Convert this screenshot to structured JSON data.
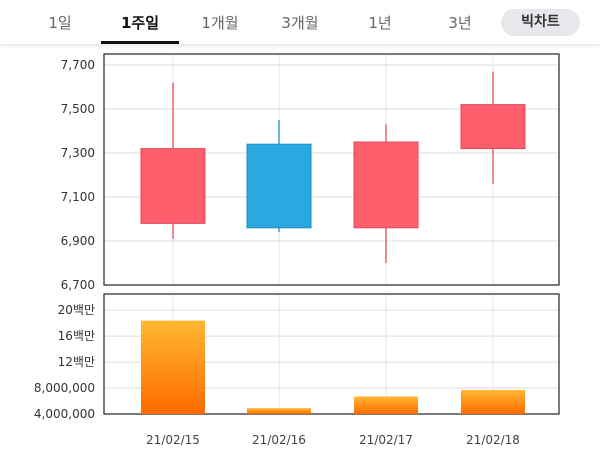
{
  "tabs": [
    {
      "label": "1일",
      "active": false
    },
    {
      "label": "1주일",
      "active": true
    },
    {
      "label": "1개월",
      "active": false
    },
    {
      "label": "3개월",
      "active": false
    },
    {
      "label": "1년",
      "active": false
    },
    {
      "label": "3년",
      "active": false
    }
  ],
  "big_chart_label": "빅차트",
  "colors": {
    "up": "#ff5f6d",
    "down": "#2aa8e0",
    "volume_top": "#ffb833",
    "volume_bottom": "#ff6a00"
  },
  "chart_data": [
    {
      "type": "candlestick",
      "x": [
        "21/02/15",
        "21/02/16",
        "21/02/17",
        "21/02/18"
      ],
      "open": [
        6980,
        7340,
        6960,
        7320
      ],
      "high": [
        7620,
        7450,
        7430,
        7670
      ],
      "low": [
        6910,
        6940,
        6800,
        7160
      ],
      "close": [
        7320,
        6960,
        7350,
        7520
      ],
      "ylim": [
        6700,
        7750
      ],
      "yticks": [
        "7,700",
        "7,500",
        "7,300",
        "7,100",
        "6,900",
        "6,700"
      ],
      "ytick_values": [
        7700,
        7500,
        7300,
        7100,
        6900,
        6700
      ]
    },
    {
      "type": "bar",
      "categories": [
        "21/02/15",
        "21/02/16",
        "21/02/17",
        "21/02/18"
      ],
      "values": [
        18400000,
        4900000,
        6700000,
        7700000
      ],
      "ylim": [
        4000000,
        22500000
      ],
      "yticks": [
        "20백만",
        "16백만",
        "12백만",
        "8,000,000",
        "4,000,000"
      ],
      "ytick_values": [
        20000000,
        16000000,
        12000000,
        8000000,
        4000000
      ]
    }
  ]
}
